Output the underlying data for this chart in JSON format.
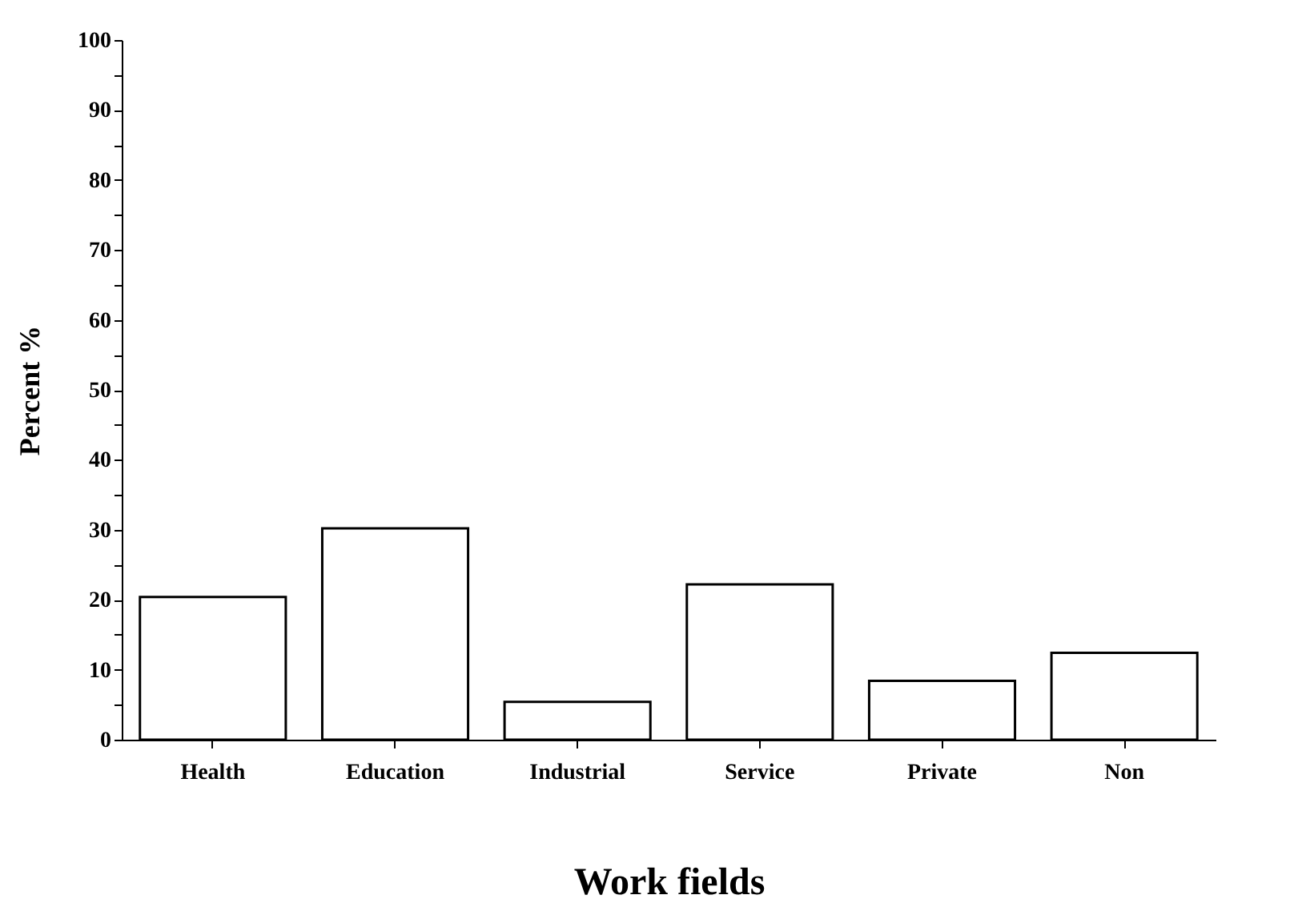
{
  "chart_data": {
    "type": "bar",
    "xlabel": "Work fields",
    "ylabel": "Percent %",
    "categories": [
      "Health",
      "Education",
      "Industrial",
      "Service",
      "Private",
      "Non"
    ],
    "values": [
      20.4,
      30.2,
      5.4,
      22.2,
      8.4,
      12.4
    ],
    "color": "#ffffff",
    "ylim": [
      0,
      100
    ],
    "yticks": [
      0,
      {
        "value": 5,
        "label": null
      },
      10,
      {
        "value": 15,
        "label": null
      },
      20,
      {
        "value": 25,
        "label": null
      },
      30,
      {
        "value": 35,
        "label": null
      },
      40,
      {
        "value": 45,
        "label": null
      },
      50,
      {
        "value": 55,
        "label": null
      },
      60,
      {
        "value": 65,
        "label": null
      },
      70,
      {
        "value": 75,
        "label": null
      },
      80,
      {
        "value": 85,
        "label": null
      },
      90,
      {
        "value": 95,
        "label": null
      },
      100
    ],
    "grid": false
  }
}
